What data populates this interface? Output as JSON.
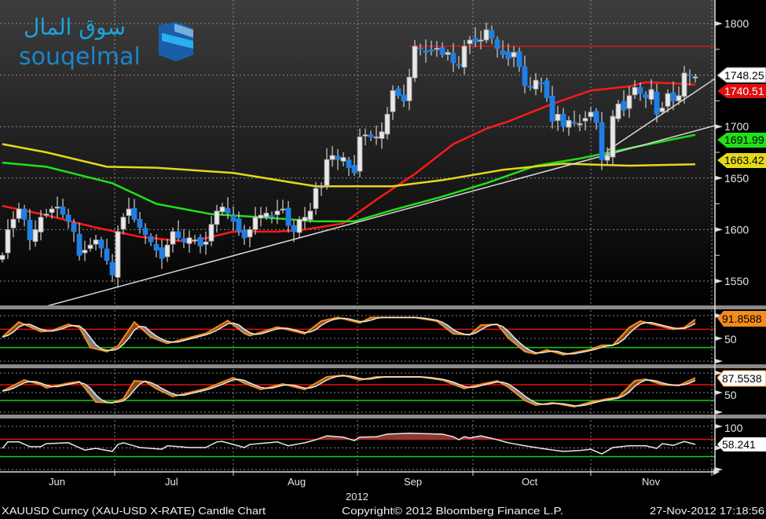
{
  "logo": {
    "arabic": "سوق المال",
    "latin": "souqelmal"
  },
  "footer": {
    "left": "XAUUSD Curncy (XAU-USD X-RATE) Candle Chart",
    "center": "Copyright© 2012 Bloomberg Finance L.P.",
    "right": "27-Nov-2012 17:18:56"
  },
  "chart_data": {
    "type": "candlestick",
    "title": "XAUUSD Curncy (XAU-USD X-RATE) Candle Chart",
    "x_axis": {
      "months": [
        "Jun",
        "Jul",
        "Aug",
        "Sep",
        "Oct",
        "Nov"
      ],
      "year": "2012"
    },
    "price_axis": {
      "ticks": [
        "1800",
        "1700",
        "1650",
        "1600",
        "1550"
      ],
      "range": [
        1520,
        1805
      ]
    },
    "colors": {
      "up": "#e8e8e8",
      "down": "#1e7fe6",
      "grid": "#8a8a8a"
    },
    "closes": [
      1575,
      1600,
      1610,
      1620,
      1610,
      1590,
      1600,
      1612,
      1615,
      1620,
      1622,
      1615,
      1608,
      1598,
      1575,
      1580,
      1585,
      1590,
      1582,
      1570,
      1556,
      1598,
      1612,
      1620,
      1610,
      1602,
      1595,
      1588,
      1580,
      1572,
      1585,
      1598,
      1592,
      1588,
      1592,
      1590,
      1584,
      1588,
      1605,
      1618,
      1622,
      1616,
      1608,
      1598,
      1592,
      1600,
      1612,
      1614,
      1616,
      1612,
      1618,
      1620,
      1604,
      1598,
      1610,
      1612,
      1618,
      1640,
      1642,
      1668,
      1672,
      1668,
      1670,
      1660,
      1655,
      1690,
      1692,
      1690,
      1690,
      1695,
      1712,
      1735,
      1730,
      1725,
      1748,
      1778,
      1776,
      1772,
      1774,
      1776,
      1770,
      1772,
      1762,
      1760,
      1778,
      1784,
      1782,
      1784,
      1794,
      1786,
      1776,
      1770,
      1766,
      1772,
      1758,
      1740,
      1738,
      1745,
      1742,
      1728,
      1705,
      1712,
      1700,
      1706,
      1704,
      1703,
      1708,
      1714,
      1704,
      1668,
      1672,
      1710,
      1722,
      1716,
      1730,
      1738,
      1732,
      1728,
      1736,
      1712,
      1718,
      1732,
      1725,
      1730,
      1752,
      1750,
      1748.25
    ],
    "moving_averages": [
      {
        "name": "short MA",
        "color": "#ff1a1a",
        "last_value": "1740.51",
        "knots": [
          [
            0,
            1623
          ],
          [
            8,
            1614
          ],
          [
            17,
            1602
          ],
          [
            25,
            1593
          ],
          [
            34,
            1588
          ],
          [
            42,
            1598
          ],
          [
            50,
            1598
          ],
          [
            55,
            1600
          ],
          [
            62,
            1606
          ],
          [
            68,
            1629
          ],
          [
            75,
            1654
          ],
          [
            82,
            1683
          ],
          [
            88,
            1698
          ],
          [
            92,
            1705
          ],
          [
            100,
            1722
          ],
          [
            107,
            1735
          ],
          [
            114,
            1739
          ],
          [
            117,
            1743
          ],
          [
            122,
            1742
          ],
          [
            126,
            1740.51
          ]
        ]
      },
      {
        "name": "mid MA",
        "color": "#22e01a",
        "last_value": "1691.99",
        "knots": [
          [
            0,
            1665
          ],
          [
            8,
            1661
          ],
          [
            20,
            1645
          ],
          [
            28,
            1625
          ],
          [
            38,
            1615
          ],
          [
            47,
            1612
          ],
          [
            57,
            1608
          ],
          [
            64,
            1608
          ],
          [
            71,
            1619
          ],
          [
            80,
            1632
          ],
          [
            88,
            1645
          ],
          [
            97,
            1662
          ],
          [
            105,
            1669
          ],
          [
            114,
            1679
          ],
          [
            126,
            1691.99
          ]
        ]
      },
      {
        "name": "long MA",
        "color": "#e6d81a",
        "last_value": "1663.42",
        "knots": [
          [
            0,
            1683
          ],
          [
            8,
            1675
          ],
          [
            19,
            1661
          ],
          [
            28,
            1660
          ],
          [
            42,
            1655
          ],
          [
            57,
            1642
          ],
          [
            71,
            1642
          ],
          [
            80,
            1648
          ],
          [
            91,
            1658
          ],
          [
            102,
            1664
          ],
          [
            114,
            1662
          ],
          [
            126,
            1663.42
          ]
        ]
      }
    ],
    "last_price": "1748.25",
    "trendlines": [
      {
        "from": [
          8,
          1525.6
        ],
        "to": [
          129.6,
          1701
        ]
      },
      {
        "from": [
          110,
          1676.5
        ],
        "to": [
          129.6,
          1746.6
        ]
      }
    ],
    "resistance": {
      "value": 1778,
      "from_index": 74
    },
    "oscillators": [
      {
        "name": "stochastic fast",
        "tick_label": "50",
        "levels": [
          70,
          30
        ],
        "last_value": "91.8588",
        "k": [
          [
            0,
            53
          ],
          [
            3,
            86
          ],
          [
            7,
            65
          ],
          [
            9,
            67
          ],
          [
            12,
            81
          ],
          [
            14,
            74
          ],
          [
            16,
            30
          ],
          [
            19,
            21
          ],
          [
            21,
            33
          ],
          [
            24,
            86
          ],
          [
            27,
            53
          ],
          [
            30,
            39
          ],
          [
            37,
            61
          ],
          [
            41,
            89
          ],
          [
            44,
            61
          ],
          [
            45,
            56
          ],
          [
            50,
            75
          ],
          [
            55,
            60
          ],
          [
            58,
            88
          ],
          [
            61,
            96
          ],
          [
            65,
            84
          ],
          [
            67,
            96
          ],
          [
            75,
            96
          ],
          [
            79,
            88
          ],
          [
            82,
            60
          ],
          [
            85,
            58
          ],
          [
            87,
            79
          ],
          [
            90,
            81
          ],
          [
            92,
            51
          ],
          [
            95,
            21
          ],
          [
            97,
            16
          ],
          [
            99,
            25
          ],
          [
            102,
            14
          ],
          [
            107,
            26
          ],
          [
            109,
            35
          ],
          [
            111,
            35
          ],
          [
            114,
            74
          ],
          [
            116,
            88
          ],
          [
            119,
            79
          ],
          [
            122,
            70
          ],
          [
            124,
            74
          ],
          [
            126,
            91.86
          ]
        ]
      },
      {
        "name": "stochastic slow",
        "tick_label": "50",
        "levels": [
          70,
          30
        ],
        "last_value": "87.5538",
        "k": [
          [
            0,
            54
          ],
          [
            4,
            82
          ],
          [
            7,
            70
          ],
          [
            8,
            62
          ],
          [
            12,
            74
          ],
          [
            14,
            78
          ],
          [
            15,
            62
          ],
          [
            17,
            26
          ],
          [
            20,
            24
          ],
          [
            22,
            34
          ],
          [
            24,
            80
          ],
          [
            26,
            78
          ],
          [
            28,
            60
          ],
          [
            31,
            40
          ],
          [
            37,
            60
          ],
          [
            42,
            88
          ],
          [
            44,
            74
          ],
          [
            47,
            58
          ],
          [
            51,
            72
          ],
          [
            55,
            58
          ],
          [
            59,
            90
          ],
          [
            62,
            94
          ],
          [
            65,
            82
          ],
          [
            68,
            90
          ],
          [
            76,
            90
          ],
          [
            80,
            82
          ],
          [
            84,
            60
          ],
          [
            86,
            68
          ],
          [
            90,
            80
          ],
          [
            92,
            64
          ],
          [
            95,
            30
          ],
          [
            97,
            18
          ],
          [
            100,
            24
          ],
          [
            104,
            14
          ],
          [
            107,
            26
          ],
          [
            110,
            34
          ],
          [
            112,
            38
          ],
          [
            115,
            80
          ],
          [
            117,
            84
          ],
          [
            120,
            70
          ],
          [
            123,
            68
          ],
          [
            126,
            87.55
          ]
        ]
      },
      {
        "name": "RSI",
        "tick_label": "100",
        "levels": [
          70,
          30
        ],
        "last_value": "58.241",
        "k": [
          [
            0,
            49
          ],
          [
            1,
            64
          ],
          [
            3,
            64
          ],
          [
            5,
            53
          ],
          [
            7,
            53
          ],
          [
            8,
            60
          ],
          [
            12,
            62
          ],
          [
            15,
            45
          ],
          [
            17,
            49
          ],
          [
            20,
            42
          ],
          [
            21,
            58
          ],
          [
            22,
            62
          ],
          [
            25,
            51
          ],
          [
            29,
            47
          ],
          [
            30,
            55
          ],
          [
            34,
            51
          ],
          [
            37,
            51
          ],
          [
            39,
            64
          ],
          [
            40,
            65
          ],
          [
            44,
            51
          ],
          [
            45,
            58
          ],
          [
            50,
            64
          ],
          [
            52,
            55
          ],
          [
            55,
            62
          ],
          [
            57,
            69
          ],
          [
            59,
            78
          ],
          [
            62,
            75
          ],
          [
            64,
            67
          ],
          [
            65,
            75
          ],
          [
            68,
            76
          ],
          [
            70,
            82
          ],
          [
            74,
            84
          ],
          [
            80,
            82
          ],
          [
            82,
            76
          ],
          [
            83,
            69
          ],
          [
            84,
            76
          ],
          [
            85,
            73
          ],
          [
            87,
            78
          ],
          [
            90,
            69
          ],
          [
            92,
            62
          ],
          [
            95,
            55
          ],
          [
            97,
            51
          ],
          [
            99,
            47
          ],
          [
            102,
            42
          ],
          [
            105,
            44
          ],
          [
            107,
            47
          ],
          [
            109,
            36
          ],
          [
            111,
            51
          ],
          [
            114,
            55
          ],
          [
            117,
            55
          ],
          [
            119,
            49
          ],
          [
            120,
            60
          ],
          [
            122,
            56
          ],
          [
            124,
            65
          ],
          [
            126,
            58.24
          ]
        ]
      }
    ]
  }
}
